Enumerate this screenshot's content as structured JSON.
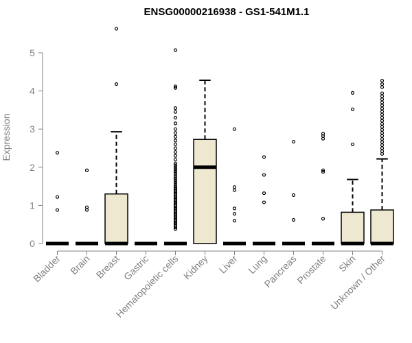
{
  "chart_data": {
    "type": "box",
    "title": "ENSG00000216938 - GS1-541M1.1",
    "ylabel": "Expression",
    "xlabel": "",
    "ylim": [
      0,
      5.7
    ],
    "yticks": [
      0,
      1,
      2,
      3,
      4,
      5
    ],
    "ytick_labels": [
      "0",
      "1",
      "2",
      "3",
      "4",
      "5"
    ],
    "box_fill": "#efe8d0",
    "box_stroke": "#000000",
    "axis_color": "#808080",
    "categories": [
      "Bladder",
      "Brain",
      "Breast",
      "Gastric",
      "Hematopoietic cells",
      "Kidney",
      "Liver",
      "Lung",
      "Pancreas",
      "Prostate",
      "Skin",
      "Unknown / Other"
    ],
    "boxes": [
      {
        "q1": 0,
        "median": 0,
        "q3": 0,
        "whisker_low": 0,
        "whisker_high": 0,
        "outliers": [
          0.88,
          1.22,
          2.38
        ]
      },
      {
        "q1": 0,
        "median": 0,
        "q3": 0,
        "whisker_low": 0,
        "whisker_high": 0,
        "outliers": [
          0.88,
          0.95,
          1.92
        ]
      },
      {
        "q1": 0,
        "median": 0,
        "q3": 1.3,
        "whisker_low": 0,
        "whisker_high": 2.93,
        "outliers": [
          4.18,
          5.63
        ]
      },
      {
        "q1": 0,
        "median": 0,
        "q3": 0,
        "whisker_low": 0,
        "whisker_high": 0,
        "outliers": []
      },
      {
        "q1": 0,
        "median": 0,
        "q3": 0,
        "whisker_low": 0,
        "whisker_high": 0,
        "outliers": [
          0.38,
          0.42,
          0.46,
          0.5,
          0.54,
          0.58,
          0.62,
          0.66,
          0.7,
          0.74,
          0.78,
          0.82,
          0.86,
          0.9,
          0.94,
          0.98,
          1.02,
          1.06,
          1.1,
          1.14,
          1.18,
          1.22,
          1.26,
          1.3,
          1.34,
          1.38,
          1.42,
          1.46,
          1.5,
          1.55,
          1.6,
          1.65,
          1.7,
          1.75,
          1.8,
          1.85,
          1.9,
          1.95,
          2.0,
          2.05,
          2.1,
          2.2,
          2.3,
          2.4,
          2.5,
          2.6,
          2.7,
          2.8,
          2.9,
          3.0,
          3.15,
          3.3,
          3.45,
          3.55,
          4.08,
          4.12,
          5.07
        ]
      },
      {
        "q1": 0,
        "median": 2.0,
        "q3": 2.73,
        "whisker_low": 0,
        "whisker_high": 4.28,
        "outliers": []
      },
      {
        "q1": 0,
        "median": 0,
        "q3": 0,
        "whisker_low": 0,
        "whisker_high": 0,
        "outliers": [
          0.6,
          0.78,
          0.92,
          1.4,
          1.48,
          3.0
        ]
      },
      {
        "q1": 0,
        "median": 0,
        "q3": 0,
        "whisker_low": 0,
        "whisker_high": 0,
        "outliers": [
          1.08,
          1.32,
          1.8,
          2.27
        ]
      },
      {
        "q1": 0,
        "median": 0,
        "q3": 0,
        "whisker_low": 0,
        "whisker_high": 0,
        "outliers": [
          0.62,
          1.27,
          2.67
        ]
      },
      {
        "q1": 0,
        "median": 0,
        "q3": 0,
        "whisker_low": 0,
        "whisker_high": 0,
        "outliers": [
          0.65,
          1.88,
          1.92,
          2.75,
          2.82,
          2.88
        ]
      },
      {
        "q1": 0,
        "median": 0,
        "q3": 0.82,
        "whisker_low": 0,
        "whisker_high": 1.68,
        "outliers": [
          2.6,
          3.52,
          3.95
        ]
      },
      {
        "q1": 0,
        "median": 0,
        "q3": 0.88,
        "whisker_low": 0,
        "whisker_high": 2.22,
        "outliers": [
          2.35,
          2.42,
          2.5,
          2.58,
          2.66,
          2.74,
          2.82,
          2.9,
          2.98,
          3.06,
          3.14,
          3.22,
          3.3,
          3.38,
          3.46,
          3.54,
          3.62,
          3.7,
          3.78,
          3.86,
          3.94,
          4.1,
          4.18,
          4.27
        ]
      }
    ]
  }
}
